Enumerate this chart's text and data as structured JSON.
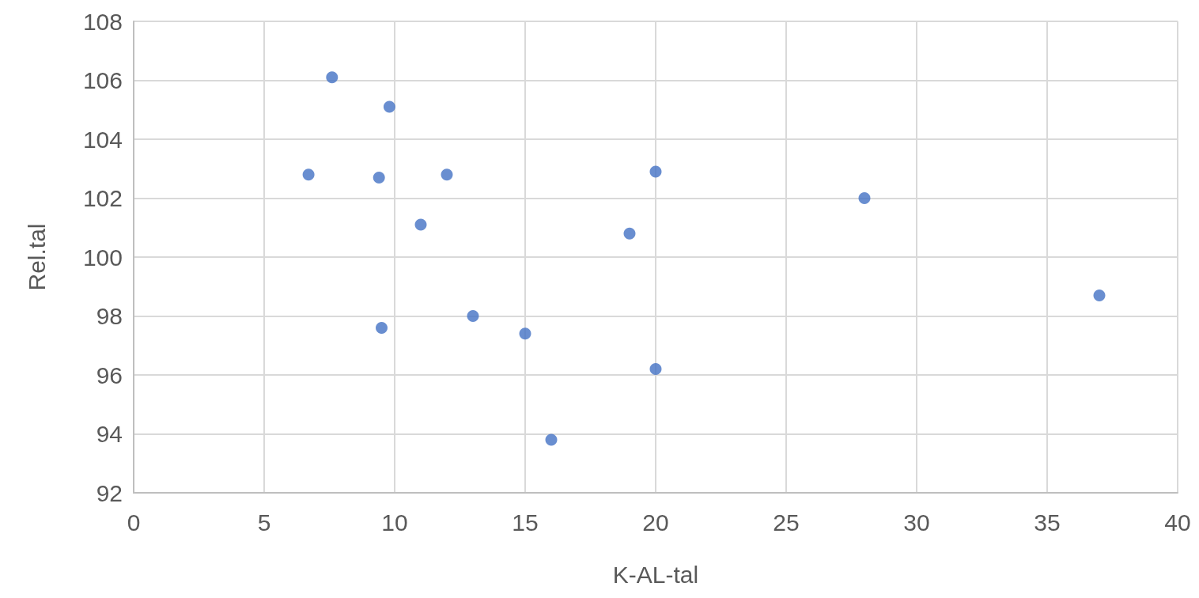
{
  "chart_data": {
    "type": "scatter",
    "xlabel": "K-AL-tal",
    "ylabel": "Rel.tal",
    "x": [
      7.6,
      9.8,
      6.7,
      9.4,
      12.0,
      20,
      11.0,
      19.0,
      9.5,
      13.0,
      15.0,
      20,
      16.0,
      28.0,
      37.0
    ],
    "values": [
      106.1,
      105.1,
      102.8,
      102.7,
      102.8,
      102.9,
      101.1,
      100.8,
      97.6,
      98.0,
      97.4,
      96.2,
      93.8,
      102.0,
      98.7
    ],
    "color": "#4472c4",
    "marker": "circle",
    "xlim": [
      0,
      40
    ],
    "xticks": [
      0,
      5,
      10,
      15,
      20,
      25,
      30,
      35,
      40
    ],
    "ylim": [
      92,
      108
    ],
    "yticks": [
      92,
      94,
      96,
      98,
      100,
      102,
      104,
      106,
      108
    ],
    "grid": true
  }
}
